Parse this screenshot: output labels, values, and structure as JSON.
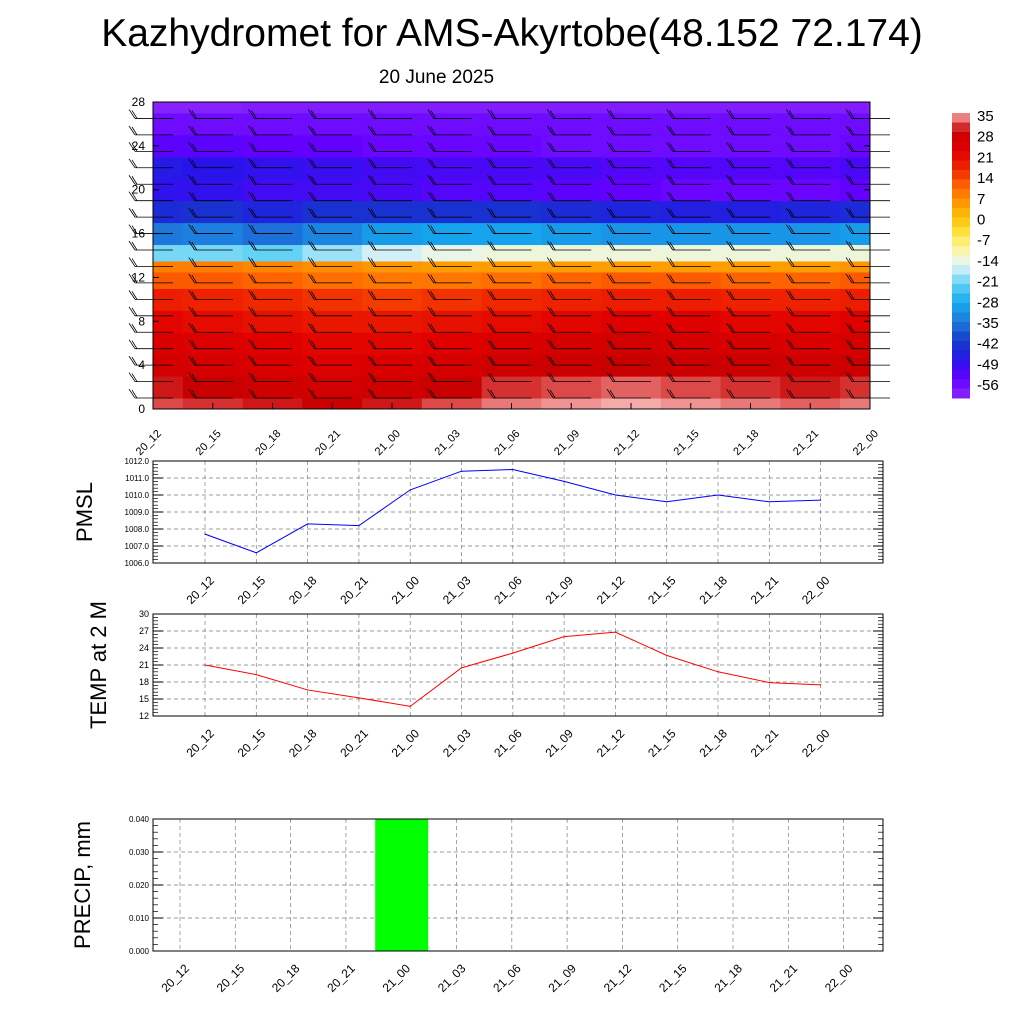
{
  "title": "Kazhydromet for AMS-Akyrtobe(48.152 72.174)",
  "subtitle": "20 June 2025",
  "colors": {
    "pmsl_line": "#0000ff",
    "temp_line": "#ff0000",
    "precip_bar": "#00ff00",
    "grid": "#7f7f7f"
  },
  "time_labels": [
    "20_12",
    "20_15",
    "20_18",
    "20_21",
    "21_00",
    "21_03",
    "21_06",
    "21_09",
    "21_12",
    "21_15",
    "21_18",
    "21_21",
    "22_00"
  ],
  "chart_data": [
    {
      "type": "heatmap",
      "name_hint": "temperature cross-section with wind barbs",
      "title": "",
      "x": [
        "20_12",
        "20_15",
        "20_18",
        "20_21",
        "21_00",
        "21_03",
        "21_06",
        "21_09",
        "21_12",
        "21_15",
        "21_18",
        "21_21",
        "22_00"
      ],
      "y_ticks": [
        0,
        4,
        8,
        12,
        16,
        20,
        24,
        28
      ],
      "ylim": [
        0,
        28
      ],
      "colorbar_labels": [
        "35",
        "28",
        "21",
        "14",
        "7",
        "0",
        "-7",
        "-14",
        "-21",
        "-28",
        "-35",
        "-42",
        "-49",
        "-56"
      ],
      "colorbar_range": [
        -63,
        42
      ],
      "levels": [
        0,
        2,
        4,
        6,
        8,
        10,
        12,
        13,
        14,
        16,
        18,
        20,
        22,
        24,
        26,
        28
      ],
      "values": [
        [
          38,
          36,
          32,
          30,
          27,
          23,
          16,
          12,
          -20,
          -35,
          -45,
          -50,
          -48,
          -55,
          -58,
          -62
        ],
        [
          37,
          35,
          31,
          29,
          26,
          22,
          16,
          12,
          -20,
          -34,
          -44,
          -50,
          -49,
          -55,
          -58,
          -62
        ],
        [
          36,
          33,
          30,
          28,
          25,
          21,
          15,
          11,
          -21,
          -36,
          -46,
          -52,
          -50,
          -56,
          -58,
          -61
        ],
        [
          35,
          32,
          29,
          27,
          24,
          20,
          14,
          10,
          -18,
          -33,
          -44,
          -52,
          -51,
          -56,
          -58,
          -61
        ],
        [
          36,
          33,
          30,
          27,
          24,
          19,
          13,
          9,
          -15,
          -30,
          -44,
          -53,
          -52,
          -57,
          -58,
          -61
        ],
        [
          38,
          35,
          31,
          28,
          25,
          20,
          13,
          8,
          -13,
          -29,
          -44,
          -54,
          -53,
          -57,
          -58,
          -61
        ],
        [
          40,
          37,
          33,
          30,
          26,
          21,
          14,
          8,
          -12,
          -29,
          -44,
          -54,
          -53,
          -57,
          -58,
          -61
        ],
        [
          41,
          38,
          34,
          31,
          27,
          22,
          15,
          8,
          -12,
          -30,
          -45,
          -55,
          -53,
          -58,
          -58,
          -61
        ],
        [
          42,
          39,
          35,
          32,
          28,
          23,
          16,
          8,
          -12,
          -31,
          -46,
          -56,
          -54,
          -58,
          -58,
          -61
        ],
        [
          41,
          38,
          34,
          31,
          28,
          23,
          16,
          8,
          -12,
          -31,
          -47,
          -57,
          -54,
          -58,
          -58,
          -61
        ],
        [
          40,
          37,
          34,
          31,
          27,
          22,
          15,
          8,
          -12,
          -31,
          -47,
          -57,
          -54,
          -58,
          -58,
          -61
        ],
        [
          39,
          36,
          33,
          30,
          27,
          22,
          15,
          8,
          -12,
          -31,
          -46,
          -57,
          -54,
          -58,
          -58,
          -61
        ],
        [
          40,
          37,
          34,
          31,
          28,
          23,
          16,
          9,
          -12,
          -30,
          -45,
          -56,
          -53,
          -57,
          -58,
          -61
        ]
      ]
    },
    {
      "type": "line",
      "ylabel": "PMSL",
      "categories": [
        "20_12",
        "20_15",
        "20_18",
        "20_21",
        "21_00",
        "21_03",
        "21_06",
        "21_09",
        "21_12",
        "21_15",
        "21_18",
        "21_21",
        "22_00"
      ],
      "values": [
        1007.7,
        1006.6,
        1008.3,
        1008.2,
        1010.3,
        1011.4,
        1011.5,
        1010.8,
        1010.0,
        1009.6,
        1010.0,
        1009.6,
        1009.7
      ],
      "ylim": [
        1006.0,
        1012.0
      ],
      "y_ticks": [
        "1006.0",
        "1007.0",
        "1008.0",
        "1009.0",
        "1010.0",
        "1011.0",
        "1012.0"
      ],
      "grid": true
    },
    {
      "type": "line",
      "ylabel": "TEMP at 2 M",
      "categories": [
        "20_12",
        "20_15",
        "20_18",
        "20_21",
        "21_00",
        "21_03",
        "21_06",
        "21_09",
        "21_12",
        "21_15",
        "21_18",
        "21_21",
        "22_00"
      ],
      "values": [
        21.0,
        19.3,
        16.6,
        15.2,
        13.7,
        20.5,
        23.1,
        26.0,
        26.8,
        22.7,
        19.8,
        17.9,
        17.5
      ],
      "ylim": [
        12,
        30
      ],
      "y_ticks": [
        "12",
        "15",
        "18",
        "21",
        "24",
        "27",
        "30"
      ],
      "grid": true
    },
    {
      "type": "bar",
      "ylabel": "PRECIP, mm",
      "categories": [
        "20_12",
        "20_15",
        "20_18",
        "20_21",
        "21_00",
        "21_03",
        "21_06",
        "21_09",
        "21_12",
        "21_15",
        "21_18",
        "21_21",
        "22_00"
      ],
      "values": [
        0,
        0,
        0,
        0,
        0.04,
        0,
        0,
        0,
        0,
        0,
        0,
        0,
        0
      ],
      "ylim": [
        0,
        0.04
      ],
      "y_ticks": [
        "0.000",
        "0.010",
        "0.020",
        "0.030",
        "0.040"
      ],
      "grid": true
    }
  ]
}
